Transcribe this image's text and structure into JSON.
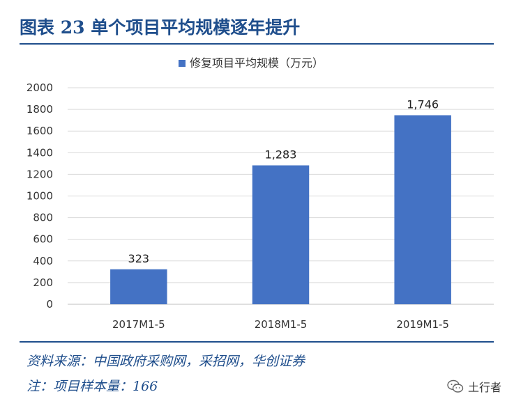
{
  "figure": {
    "title": "图表 23 单个项目平均规模逐年提升",
    "source": "资料来源：中国政府采购网，采招网，华创证券",
    "note": "注：项目样本量：166",
    "watermark": "土行者",
    "accent_color": "#1f4e8c",
    "watermark_icon": "wechat-icon"
  },
  "chart_data": {
    "type": "bar",
    "categories": [
      "2017M1-5",
      "2018M1-5",
      "2019M1-5"
    ],
    "series": [
      {
        "name": "修复项目平均规模（万元）",
        "values": [
          323,
          1283,
          1746
        ],
        "labels": [
          "323",
          "1,283",
          "1,746"
        ],
        "color": "#4472c4"
      }
    ],
    "title": "",
    "xlabel": "",
    "ylabel": "",
    "ylim": [
      0,
      2000
    ],
    "yticks": [
      0,
      200,
      400,
      600,
      800,
      1000,
      1200,
      1400,
      1600,
      1800,
      2000
    ],
    "grid": true,
    "legend": "top-center"
  }
}
